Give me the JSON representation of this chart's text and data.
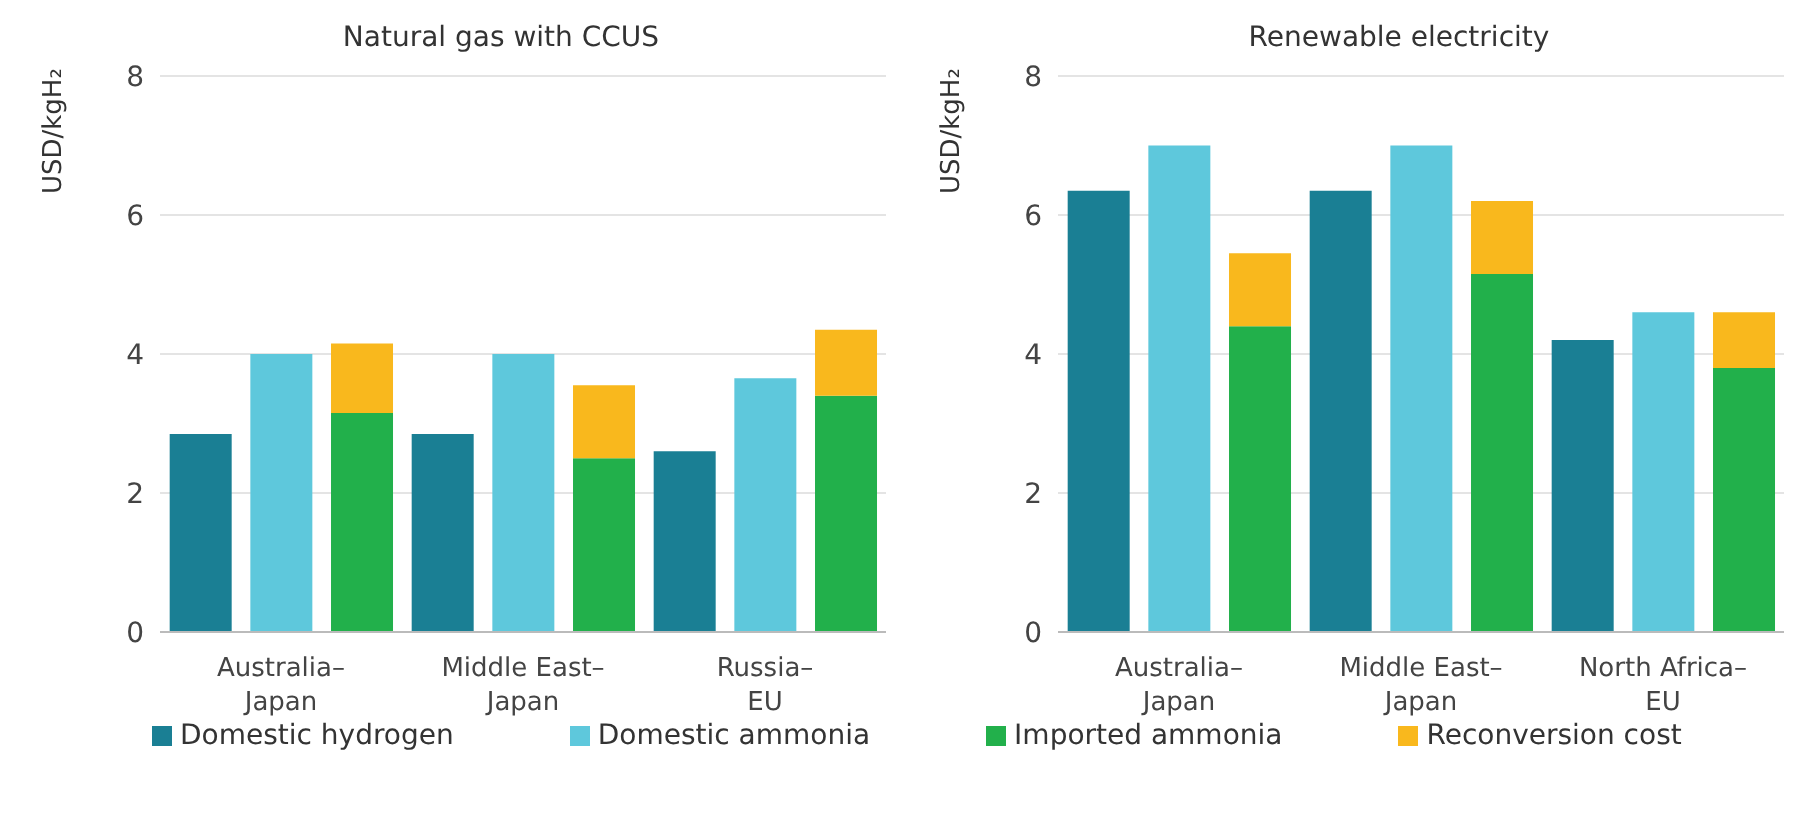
{
  "chart_data": [
    {
      "type": "bar",
      "title": "Natural gas with CCUS",
      "ylabel": "USD/kgH₂",
      "categories": [
        null,
        "Australia–Japan",
        null,
        null,
        "Middle East–Japan",
        null,
        null,
        "Russia–EU",
        null
      ],
      "stacked": true,
      "ylim": [
        0,
        8
      ],
      "yticks": [
        0,
        2,
        4,
        6,
        8
      ],
      "grid": "y",
      "legend": "bottom",
      "series": [
        {
          "name": "Domestic hydrogen",
          "color": "#1a7f94",
          "values": [
            2.85,
            null,
            null,
            2.85,
            null,
            null,
            2.6,
            null,
            null
          ]
        },
        {
          "name": "Domestic ammonia",
          "color": "#5ec8dc",
          "values": [
            null,
            4.0,
            null,
            null,
            4.0,
            null,
            null,
            3.65,
            null
          ]
        },
        {
          "name": "Imported ammonia",
          "color": "#22b04b",
          "values": [
            null,
            null,
            3.15,
            null,
            null,
            2.5,
            null,
            null,
            3.4
          ]
        },
        {
          "name": "Reconversion cost",
          "color": "#f9b81d",
          "values": [
            null,
            null,
            1.0,
            null,
            null,
            1.05,
            null,
            null,
            0.95
          ]
        }
      ]
    },
    {
      "type": "bar",
      "title": "Renewable electricity",
      "ylabel": "USD/kgH₂",
      "categories": [
        null,
        "Australia–Japan",
        null,
        null,
        "Middle East–Japan",
        null,
        null,
        "North Africa–EU",
        null
      ],
      "stacked": true,
      "ylim": [
        0,
        8
      ],
      "yticks": [
        0,
        2,
        4,
        6,
        8
      ],
      "grid": "y",
      "series": [
        {
          "color": "#1a7f94",
          "values": [
            6.35,
            null,
            null,
            6.35,
            null,
            null,
            4.2,
            null,
            null
          ]
        },
        {
          "color": "#5ec8dc",
          "values": [
            null,
            7.0,
            null,
            null,
            7.0,
            null,
            null,
            4.6,
            null
          ]
        },
        {
          "color": "#22b04b",
          "values": [
            null,
            null,
            4.4,
            null,
            null,
            5.15,
            null,
            null,
            3.8
          ]
        },
        {
          "color": "#f9b81d",
          "values": [
            null,
            null,
            1.05,
            null,
            null,
            1.05,
            null,
            null,
            0.8
          ]
        }
      ]
    }
  ]
}
